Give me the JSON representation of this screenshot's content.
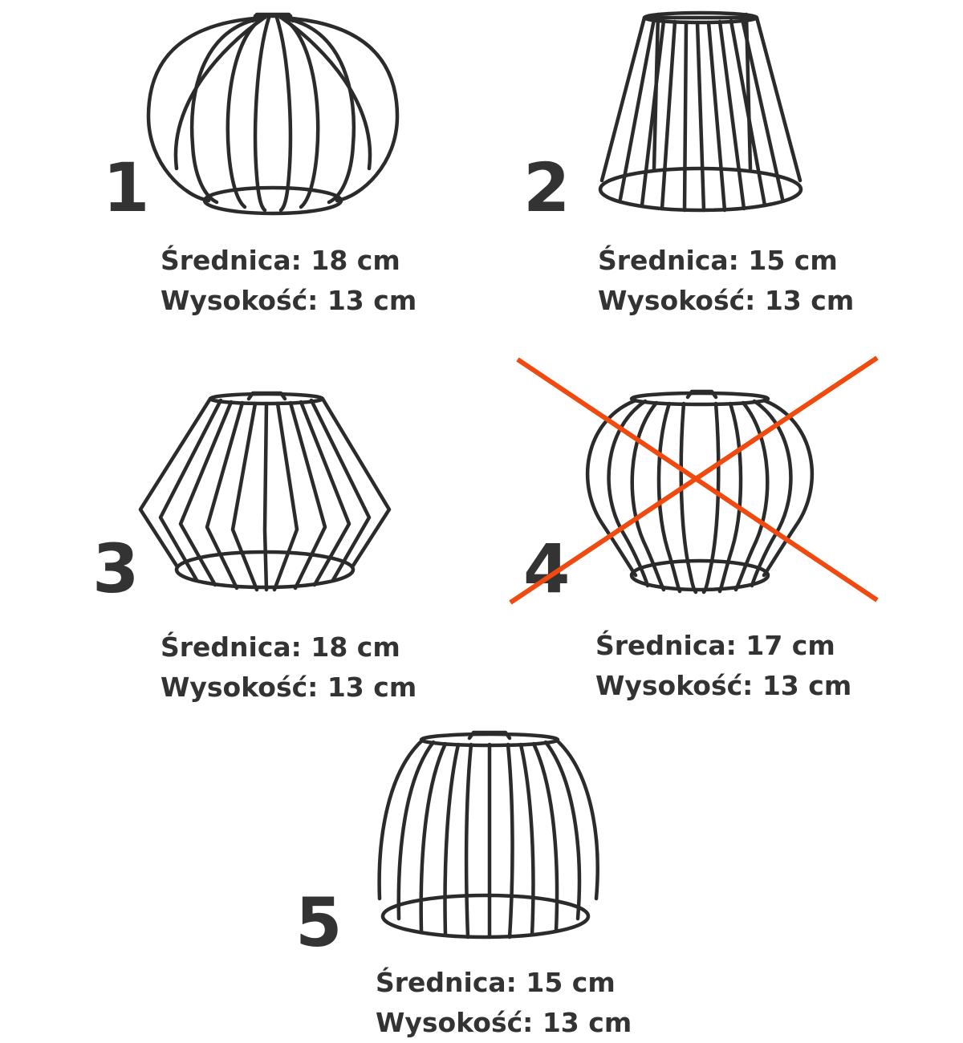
{
  "products": [
    {
      "number": "1",
      "diameter_label": "Średnica: 18 cm",
      "height_label": "Wysokość: 13 cm",
      "crossed_out": false
    },
    {
      "number": "2",
      "diameter_label": "Średnica: 15 cm",
      "height_label": "Wysokość: 13 cm",
      "crossed_out": false
    },
    {
      "number": "3",
      "diameter_label": "Średnica: 18 cm",
      "height_label": "Wysokość: 13 cm",
      "crossed_out": false
    },
    {
      "number": "4",
      "diameter_label": "Średnica: 17 cm",
      "height_label": "Wysokość: 13 cm",
      "crossed_out": true
    },
    {
      "number": "5",
      "diameter_label": "Średnica: 15 cm",
      "height_label": "Wysokość: 13 cm",
      "crossed_out": false
    }
  ],
  "colors": {
    "text": "#333333",
    "wire": "#2b2b2b",
    "cross": "#f04a10"
  }
}
